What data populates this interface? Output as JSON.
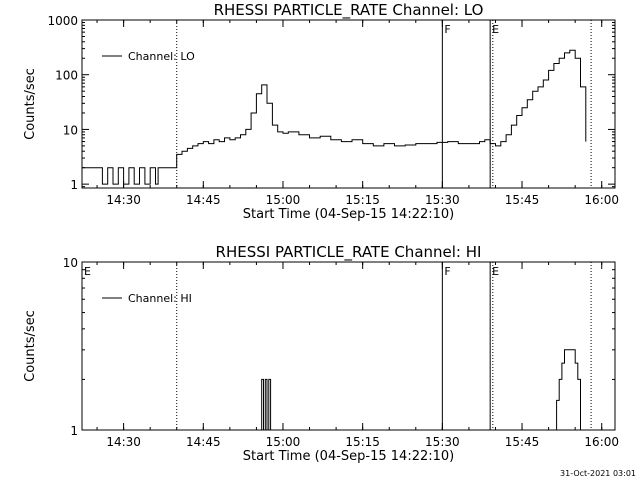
{
  "footer": {
    "timestamp": "31-Oct-2021 03:01"
  },
  "chart_data": [
    {
      "type": "line",
      "title": "RHESSI PARTICLE_RATE Channel: LO",
      "xlabel": "Start Time (04-Sep-15 14:22:10)",
      "ylabel": "Counts/sec",
      "yscale": "log",
      "xlim": [
        "14:22:10",
        "16:02:30"
      ],
      "ylim": [
        0.85,
        1000
      ],
      "xticks": [
        "14:30",
        "14:45",
        "15:00",
        "15:15",
        "15:30",
        "15:45",
        "16:00"
      ],
      "yticks": [
        "1",
        "10",
        "100",
        "1000"
      ],
      "legend": {
        "entry": "Channel: LO",
        "placement": "top-left"
      },
      "series": [
        {
          "name": "Channel: LO",
          "x": [
            "14:22:10",
            "14:24",
            "14:25",
            "14:26",
            "14:27",
            "14:28",
            "14:29",
            "14:30",
            "14:31",
            "14:32",
            "14:33",
            "14:34",
            "14:35",
            "14:36",
            "14:36:30",
            "14:37",
            "14:38",
            "14:39",
            "14:40",
            "14:41",
            "14:42",
            "14:43",
            "14:44",
            "14:45",
            "14:46",
            "14:47",
            "14:48",
            "14:49",
            "14:50",
            "14:51",
            "14:52",
            "14:53",
            "14:54",
            "14:55",
            "14:56",
            "14:57",
            "14:58",
            "14:59",
            "15:00",
            "15:01",
            "15:03",
            "15:05",
            "15:07",
            "15:09",
            "15:11",
            "15:13",
            "15:15",
            "15:17",
            "15:19",
            "15:21",
            "15:23",
            "15:25",
            "15:27",
            "15:29",
            "15:31",
            "15:33",
            "15:35",
            "15:37",
            "15:38",
            "15:39",
            "15:40",
            "15:41",
            "15:42",
            "15:43",
            "15:44",
            "15:45",
            "15:46",
            "15:47",
            "15:48",
            "15:49",
            "15:50",
            "15:51",
            "15:52",
            "15:53",
            "15:54",
            "15:55",
            "15:56",
            "15:57"
          ],
          "values": [
            2,
            2,
            2,
            1,
            2,
            1,
            2,
            1,
            2,
            1,
            2,
            1,
            2,
            1,
            2,
            2,
            2,
            2,
            3.5,
            4,
            4.5,
            5,
            5.5,
            6,
            5.5,
            6.5,
            6,
            7,
            6.5,
            7,
            8,
            10,
            20,
            45,
            65,
            30,
            12,
            9,
            8.5,
            9,
            8,
            7,
            7.5,
            6.5,
            6,
            6.5,
            5.5,
            5,
            5.5,
            5,
            5.2,
            5.5,
            5.5,
            5.8,
            6,
            5.5,
            5.5,
            6,
            6.5,
            5.5,
            5,
            6,
            8,
            12,
            18,
            25,
            35,
            50,
            60,
            80,
            120,
            160,
            200,
            250,
            280,
            200,
            60,
            6
          ]
        }
      ],
      "events": [
        {
          "label": "F",
          "time": "15:30",
          "style": "solid"
        },
        {
          "label": "E",
          "time": "15:39",
          "style": "solid"
        },
        {
          "label": "",
          "time": "14:40",
          "style": "dotted"
        },
        {
          "label": "",
          "time": "15:39:30",
          "style": "dotted"
        },
        {
          "label": "",
          "time": "15:58",
          "style": "dotted"
        }
      ]
    },
    {
      "type": "line",
      "title": "RHESSI PARTICLE_RATE Channel: HI",
      "xlabel": "Start Time (04-Sep-15 14:22:10)",
      "ylabel": "Counts/sec",
      "yscale": "log",
      "xlim": [
        "14:22:10",
        "16:02:30"
      ],
      "ylim": [
        1,
        10
      ],
      "xticks": [
        "14:30",
        "14:45",
        "15:00",
        "15:15",
        "15:30",
        "15:45",
        "16:00"
      ],
      "yticks": [
        "1",
        "10"
      ],
      "legend": {
        "entry": "Channel: HI",
        "placement": "top-left"
      },
      "series": [
        {
          "name": "Channel: HI",
          "x": [
            "14:55:30",
            "14:56",
            "14:56:20",
            "14:56:40",
            "14:57",
            "14:57:20",
            "14:57:40",
            "14:58",
            "15:51",
            "15:51:30",
            "15:52",
            "15:52:30",
            "15:53",
            "15:53:30",
            "15:54",
            "15:54:30",
            "15:55",
            "15:55:30",
            "15:56"
          ],
          "values": [
            1,
            2,
            1,
            2,
            1,
            2,
            1,
            1,
            1,
            1.5,
            2,
            2.5,
            3,
            3,
            3,
            3,
            2.5,
            2,
            1
          ]
        }
      ],
      "events": [
        {
          "label": "E",
          "time": "14:22:10",
          "style": "none"
        },
        {
          "label": "F",
          "time": "15:30",
          "style": "solid"
        },
        {
          "label": "E",
          "time": "15:39",
          "style": "solid"
        },
        {
          "label": "",
          "time": "14:40",
          "style": "dotted"
        },
        {
          "label": "",
          "time": "15:39:30",
          "style": "dotted"
        },
        {
          "label": "",
          "time": "15:58",
          "style": "dotted"
        }
      ]
    }
  ]
}
